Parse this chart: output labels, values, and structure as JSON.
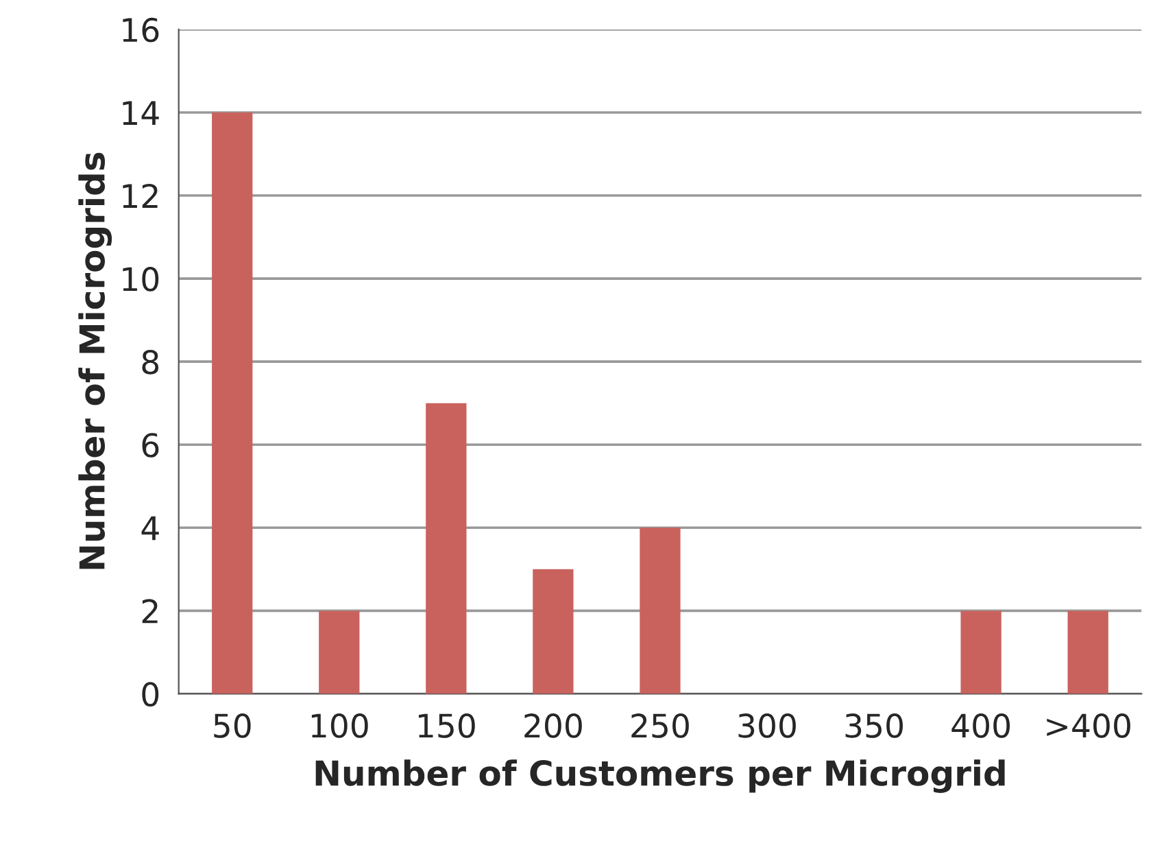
{
  "chart_data": {
    "type": "bar",
    "xlabel": "Number of Customers per Microgrid",
    "ylabel": "Number of Microgrids",
    "categories": [
      "50",
      "100",
      "150",
      "200",
      "250",
      "300",
      "350",
      "400",
      ">400"
    ],
    "values": [
      14,
      2,
      7,
      3,
      4,
      0,
      0,
      2,
      2
    ],
    "color": "#c9625d",
    "ylim": [
      0,
      16
    ],
    "yticks": [
      0,
      2,
      4,
      6,
      8,
      10,
      12,
      14,
      16
    ],
    "grid": "y",
    "legend": false
  }
}
